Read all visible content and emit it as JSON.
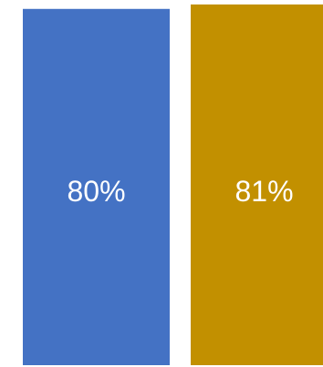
{
  "chart_data": {
    "type": "bar",
    "categories": [
      "",
      ""
    ],
    "values": [
      80,
      81
    ],
    "data_labels": [
      "80%",
      "81%"
    ],
    "colors": [
      "#4472C4",
      "#C29000"
    ],
    "ylim": [
      0,
      82
    ],
    "grid": false,
    "legend": "none",
    "axes_visible": false,
    "title": "",
    "xlabel": "",
    "ylabel": ""
  }
}
